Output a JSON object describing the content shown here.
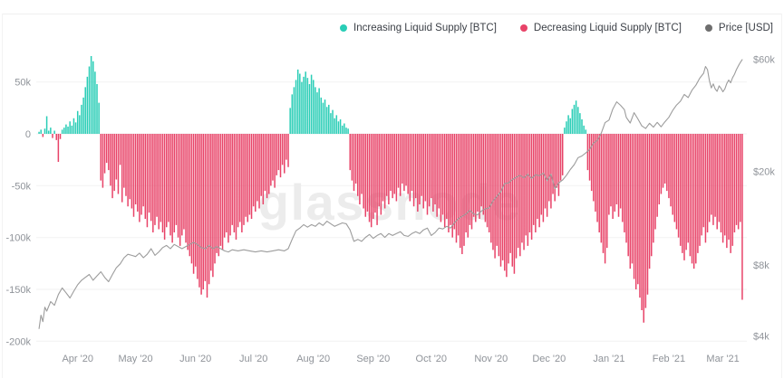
{
  "watermark": "glassnode",
  "legend": {
    "items": [
      {
        "id": "increasing-liquid-supply",
        "label": "Increasing Liquid Supply [BTC]",
        "color": "#29CDB6"
      },
      {
        "id": "decreasing-liquid-supply",
        "label": "Decreasing Liquid Supply [BTC]",
        "color": "#E84368"
      },
      {
        "id": "price",
        "label": "Price [USD]",
        "color": "#6E6E6E"
      }
    ]
  },
  "axes": {
    "left": {
      "unit": "BTC (thousands)",
      "ticks": [
        {
          "label": "50k",
          "value": 50
        },
        {
          "label": "0",
          "value": 0
        },
        {
          "label": "-50k",
          "value": -50
        },
        {
          "label": "-100k",
          "value": -100
        },
        {
          "label": "-150k",
          "value": -150
        },
        {
          "label": "-200k",
          "value": -200
        }
      ]
    },
    "right": {
      "unit": "USD",
      "scale": "log",
      "ticks": [
        {
          "label": "$60k",
          "value": 60
        },
        {
          "label": "$20k",
          "value": 20
        },
        {
          "label": "$8k",
          "value": 8
        },
        {
          "label": "$4k",
          "value": 4
        }
      ]
    },
    "bottom": {
      "ticks": [
        {
          "label": "Apr '20",
          "day": 20
        },
        {
          "label": "May '20",
          "day": 50
        },
        {
          "label": "Jun '20",
          "day": 81
        },
        {
          "label": "Jul '20",
          "day": 111
        },
        {
          "label": "Aug '20",
          "day": 142
        },
        {
          "label": "Sep '20",
          "day": 173
        },
        {
          "label": "Oct '20",
          "day": 203
        },
        {
          "label": "Nov '20",
          "day": 234
        },
        {
          "label": "Dec '20",
          "day": 264
        },
        {
          "label": "Jan '21",
          "day": 295
        },
        {
          "label": "Feb '21",
          "day": 326
        },
        {
          "label": "Mar '21",
          "day": 354
        }
      ]
    }
  },
  "chart_data": {
    "type": "combo",
    "title": "",
    "xlabel": "",
    "days": 365,
    "x_range_labels": [
      "Apr '20",
      "Mar '21"
    ],
    "ylim_left_k_btc": [
      -206,
      81
    ],
    "ylim_right_usd_k": [
      4,
      62
    ],
    "grid": "horizontal-faint",
    "legend_position": "top-right",
    "bar_series": {
      "name": "Liquid Supply Change [BTC]",
      "unit": "thousand BTC per day (positive = Increasing, negative = Decreasing)",
      "positive_color": "#29CDB6",
      "negative_color": "#E84368",
      "values": [
        2,
        4,
        -3,
        5,
        17,
        3,
        6,
        -4,
        3,
        -6,
        -27,
        -5,
        4,
        6,
        9,
        7,
        12,
        8,
        15,
        11,
        22,
        18,
        28,
        35,
        45,
        55,
        65,
        75,
        70,
        60,
        48,
        30,
        -45,
        -52,
        -38,
        -28,
        -35,
        -50,
        -62,
        -55,
        -44,
        -58,
        -30,
        -66,
        -52,
        -60,
        -70,
        -63,
        -72,
        -80,
        -68,
        -75,
        -85,
        -78,
        -70,
        -82,
        -90,
        -76,
        -84,
        -95,
        -88,
        -80,
        -92,
        -85,
        -95,
        -102,
        -90,
        -85,
        -98,
        -105,
        -95,
        -88,
        -100,
        -108,
        -98,
        -92,
        -105,
        -112,
        -118,
        -125,
        -135,
        -128,
        -140,
        -148,
        -155,
        -150,
        -142,
        -158,
        -145,
        -132,
        -138,
        -125,
        -115,
        -118,
        -108,
        -112,
        -100,
        -95,
        -105,
        -98,
        -88,
        -95,
        -102,
        -90,
        -85,
        -95,
        -88,
        -80,
        -85,
        -78,
        -82,
        -70,
        -75,
        -65,
        -72,
        -60,
        -68,
        -55,
        -62,
        -58,
        -50,
        -45,
        -52,
        -40,
        -35,
        -42,
        -30,
        -38,
        -25,
        -32,
        25,
        38,
        45,
        52,
        62,
        58,
        50,
        55,
        60,
        54,
        48,
        57,
        52,
        45,
        40,
        44,
        35,
        30,
        33,
        26,
        28,
        20,
        23,
        15,
        18,
        12,
        14,
        8,
        10,
        6,
        5,
        -35,
        -45,
        -55,
        -48,
        -60,
        -68,
        -58,
        -72,
        -80,
        -75,
        -85,
        -90,
        -82,
        -76,
        -88,
        -70,
        -78,
        -65,
        -72,
        -60,
        -68,
        -55,
        -62,
        -58,
        -65,
        -52,
        -60,
        -48,
        -55,
        -50,
        -58,
        -65,
        -55,
        -70,
        -62,
        -75,
        -68,
        -60,
        -72,
        -65,
        -78,
        -70,
        -62,
        -75,
        -68,
        -80,
        -72,
        -85,
        -78,
        -90,
        -82,
        -95,
        -88,
        -100,
        -92,
        -105,
        -98,
        -110,
        -116,
        -108,
        -95,
        -100,
        -88,
        -92,
        -80,
        -85,
        -75,
        -82,
        -70,
        -78,
        -85,
        -90,
        -95,
        -105,
        -112,
        -120,
        -108,
        -118,
        -128,
        -122,
        -132,
        -138,
        -125,
        -115,
        -128,
        -135,
        -120,
        -110,
        -118,
        -105,
        -112,
        -98,
        -108,
        -95,
        -102,
        -88,
        -95,
        -82,
        -90,
        -78,
        -85,
        -72,
        -80,
        -65,
        -72,
        -58,
        -65,
        -52,
        -60,
        -45,
        -40,
        6,
        12,
        18,
        15,
        24,
        28,
        32,
        26,
        20,
        14,
        8,
        4,
        -35,
        -45,
        -55,
        -65,
        -75,
        -85,
        -95,
        -105,
        -115,
        -125,
        -110,
        -78,
        -70,
        -82,
        -75,
        -68,
        -80,
        -72,
        -85,
        -95,
        -105,
        -118,
        -130,
        -125,
        -140,
        -150,
        -145,
        -158,
        -170,
        -182,
        -168,
        -155,
        -130,
        -118,
        -105,
        -92,
        -80,
        -68,
        -58,
        -52,
        -48,
        -55,
        -62,
        -70,
        -78,
        -85,
        -92,
        -100,
        -108,
        -115,
        -122,
        -112,
        -105,
        -118,
        -125,
        -130,
        -125,
        -115,
        -108,
        -98,
        -90,
        -105,
        -95,
        -85,
        -78,
        -88,
        -80,
        -92,
        -85,
        -95,
        -105,
        -98,
        -110,
        -102,
        -115,
        -108,
        -95,
        -88,
        -92,
        -85,
        -160
      ]
    },
    "line_series": {
      "name": "Price [USD]",
      "unit": "thousand USD",
      "scale": "log",
      "color": "#9C9C9C",
      "points": [
        [
          0,
          4.3
        ],
        [
          1,
          4.9
        ],
        [
          2,
          4.6
        ],
        [
          3,
          5.3
        ],
        [
          4,
          5.1
        ],
        [
          6,
          5.6
        ],
        [
          8,
          5.4
        ],
        [
          10,
          6.0
        ],
        [
          12,
          6.4
        ],
        [
          14,
          6.1
        ],
        [
          16,
          5.8
        ],
        [
          18,
          6.2
        ],
        [
          20,
          6.6
        ],
        [
          22,
          6.9
        ],
        [
          24,
          7.1
        ],
        [
          26,
          7.3
        ],
        [
          28,
          6.9
        ],
        [
          30,
          7.2
        ],
        [
          32,
          7.5
        ],
        [
          34,
          7.1
        ],
        [
          36,
          6.8
        ],
        [
          38,
          7.3
        ],
        [
          40,
          7.8
        ],
        [
          42,
          8.1
        ],
        [
          44,
          8.6
        ],
        [
          46,
          8.9
        ],
        [
          48,
          8.8
        ],
        [
          50,
          8.7
        ],
        [
          52,
          9.0
        ],
        [
          54,
          8.6
        ],
        [
          56,
          8.9
        ],
        [
          58,
          9.4
        ],
        [
          60,
          8.8
        ],
        [
          62,
          9.1
        ],
        [
          64,
          9.5
        ],
        [
          66,
          9.7
        ],
        [
          68,
          9.4
        ],
        [
          70,
          9.8
        ],
        [
          72,
          9.6
        ],
        [
          74,
          9.4
        ],
        [
          76,
          9.6
        ],
        [
          78,
          9.8
        ],
        [
          80,
          10.0
        ],
        [
          82,
          9.8
        ],
        [
          84,
          9.5
        ],
        [
          86,
          9.4
        ],
        [
          88,
          9.7
        ],
        [
          90,
          9.4
        ],
        [
          92,
          9.6
        ],
        [
          94,
          9.4
        ],
        [
          96,
          9.2
        ],
        [
          98,
          9.1
        ],
        [
          100,
          9.3
        ],
        [
          103,
          9.2
        ],
        [
          106,
          9.3
        ],
        [
          109,
          9.2
        ],
        [
          112,
          9.1
        ],
        [
          115,
          9.2
        ],
        [
          118,
          9.1
        ],
        [
          121,
          9.2
        ],
        [
          124,
          9.3
        ],
        [
          127,
          9.2
        ],
        [
          129,
          9.4
        ],
        [
          131,
          10.3
        ],
        [
          133,
          11.2
        ],
        [
          135,
          11.5
        ],
        [
          137,
          11.9
        ],
        [
          139,
          11.6
        ],
        [
          141,
          11.9
        ],
        [
          143,
          11.7
        ],
        [
          145,
          12.1
        ],
        [
          147,
          11.8
        ],
        [
          149,
          12.3
        ],
        [
          151,
          12.0
        ],
        [
          153,
          11.7
        ],
        [
          155,
          11.9
        ],
        [
          157,
          12.1
        ],
        [
          159,
          12.0
        ],
        [
          161,
          11.3
        ],
        [
          163,
          10.1
        ],
        [
          165,
          10.3
        ],
        [
          167,
          10.1
        ],
        [
          169,
          10.5
        ],
        [
          171,
          10.8
        ],
        [
          173,
          10.4
        ],
        [
          175,
          10.7
        ],
        [
          177,
          10.9
        ],
        [
          179,
          10.5
        ],
        [
          181,
          10.9
        ],
        [
          183,
          10.7
        ],
        [
          185,
          10.9
        ],
        [
          187,
          11.1
        ],
        [
          189,
          10.7
        ],
        [
          191,
          10.6
        ],
        [
          193,
          10.9
        ],
        [
          195,
          11.1
        ],
        [
          197,
          10.9
        ],
        [
          199,
          11.3
        ],
        [
          201,
          11.5
        ],
        [
          203,
          10.7
        ],
        [
          205,
          11.0
        ],
        [
          207,
          11.5
        ],
        [
          209,
          11.4
        ],
        [
          211,
          11.7
        ],
        [
          213,
          11.5
        ],
        [
          215,
          12.1
        ],
        [
          217,
          12.6
        ],
        [
          219,
          12.9
        ],
        [
          221,
          13.2
        ],
        [
          223,
          13.7
        ],
        [
          225,
          13.2
        ],
        [
          227,
          13.1
        ],
        [
          229,
          13.6
        ],
        [
          231,
          13.9
        ],
        [
          233,
          14.0
        ],
        [
          235,
          15.0
        ],
        [
          237,
          15.7
        ],
        [
          239,
          16.4
        ],
        [
          241,
          17.8
        ],
        [
          243,
          17.9
        ],
        [
          245,
          18.5
        ],
        [
          247,
          18.9
        ],
        [
          249,
          19.3
        ],
        [
          251,
          18.8
        ],
        [
          253,
          19.5
        ],
        [
          255,
          18.7
        ],
        [
          257,
          19.4
        ],
        [
          259,
          19.2
        ],
        [
          261,
          19.7
        ],
        [
          263,
          18.3
        ],
        [
          265,
          19.5
        ],
        [
          267,
          16.9
        ],
        [
          269,
          17.9
        ],
        [
          271,
          18.4
        ],
        [
          273,
          19.3
        ],
        [
          275,
          20.4
        ],
        [
          277,
          21.4
        ],
        [
          279,
          22.9
        ],
        [
          281,
          23.3
        ],
        [
          283,
          24.0
        ],
        [
          285,
          24.8
        ],
        [
          287,
          26.4
        ],
        [
          289,
          27.2
        ],
        [
          291,
          29.1
        ],
        [
          293,
          32.3
        ],
        [
          295,
          33.1
        ],
        [
          297,
          36.9
        ],
        [
          299,
          39.6
        ],
        [
          301,
          38.3
        ],
        [
          303,
          36.7
        ],
        [
          304,
          34.0
        ],
        [
          306,
          32.2
        ],
        [
          308,
          35.6
        ],
        [
          310,
          33.5
        ],
        [
          312,
          31.3
        ],
        [
          314,
          30.5
        ],
        [
          316,
          32.1
        ],
        [
          318,
          30.9
        ],
        [
          320,
          32.4
        ],
        [
          322,
          31.0
        ],
        [
          324,
          32.6
        ],
        [
          326,
          34.0
        ],
        [
          328,
          36.4
        ],
        [
          330,
          38.4
        ],
        [
          332,
          39.8
        ],
        [
          334,
          42.6
        ],
        [
          336,
          41.3
        ],
        [
          338,
          44.4
        ],
        [
          340,
          46.6
        ],
        [
          342,
          49.9
        ],
        [
          344,
          52.4
        ],
        [
          345,
          56.0
        ],
        [
          346,
          54.3
        ],
        [
          347,
          48.7
        ],
        [
          348,
          45.4
        ],
        [
          349,
          47.2
        ],
        [
          350,
          44.9
        ],
        [
          351,
          43.9
        ],
        [
          352,
          46.3
        ],
        [
          353,
          45.2
        ],
        [
          354,
          43.7
        ],
        [
          355,
          45.0
        ],
        [
          356,
          47.4
        ],
        [
          357,
          49.0
        ],
        [
          358,
          47.7
        ],
        [
          359,
          50.2
        ],
        [
          360,
          51.9
        ],
        [
          361,
          54.3
        ],
        [
          362,
          56.4
        ],
        [
          363,
          58.2
        ],
        [
          364,
          59.9
        ]
      ]
    }
  }
}
